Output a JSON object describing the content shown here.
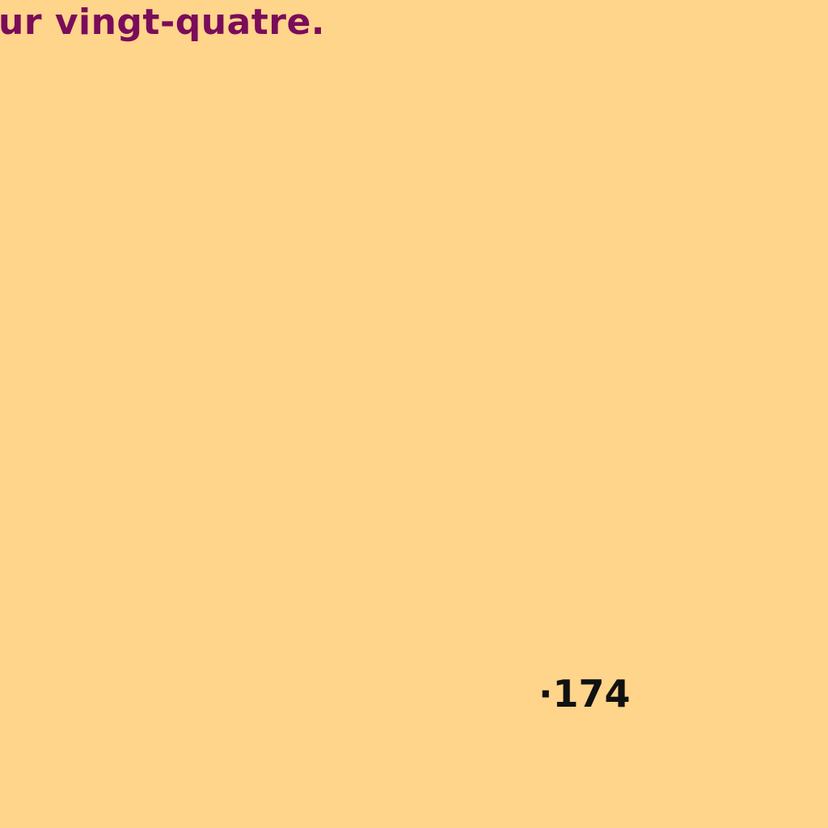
{
  "page": {
    "background_color": "#FFD48B",
    "text_color": "#7A0C5A"
  },
  "heading": {
    "text": "ur vingt-quatre."
  },
  "footer": {
    "page_number": "·174"
  }
}
